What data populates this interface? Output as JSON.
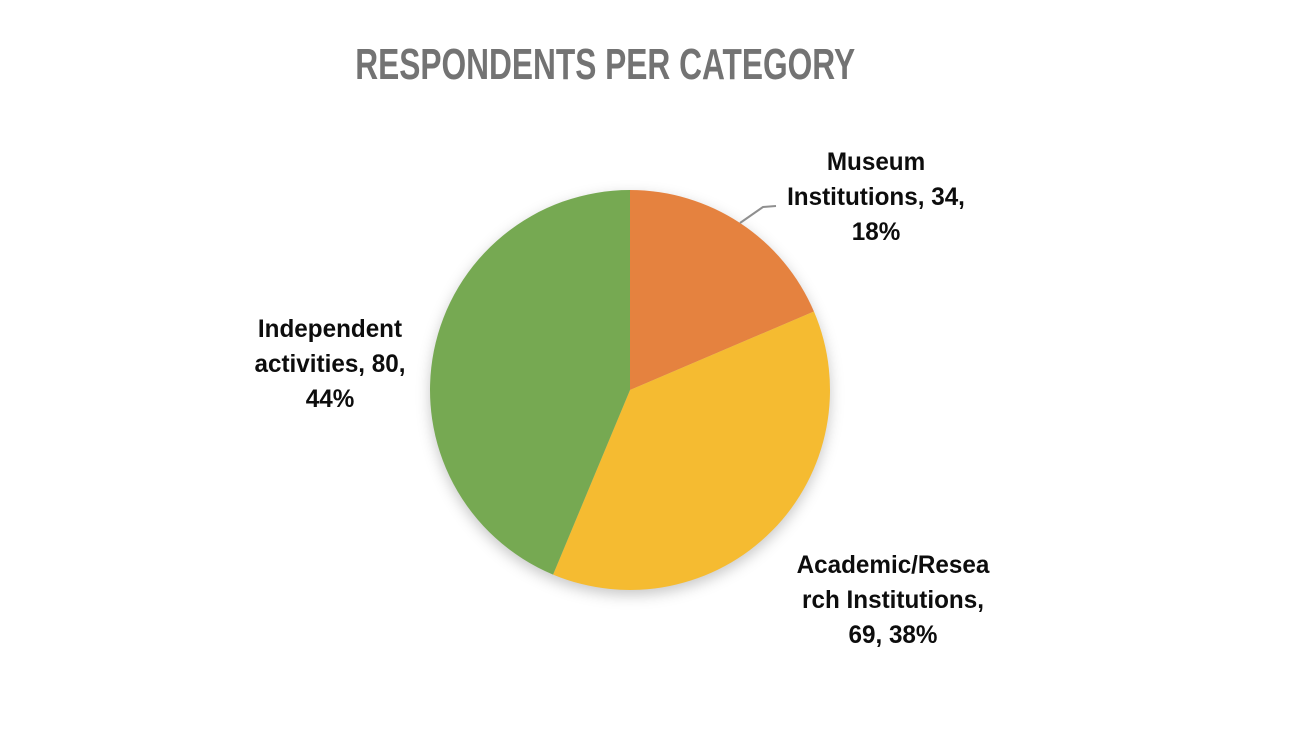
{
  "page": {
    "background_color": "#ffffff"
  },
  "chart_data": {
    "type": "pie",
    "title": "RESPONDENTS PER CATEGORY",
    "title_color": "#737373",
    "legend": "none",
    "start_angle_deg": 0,
    "direction": "clockwise",
    "total": 183,
    "label_format": "category, value, percent",
    "label_text_color": "#0d0d0d",
    "leader_line_color": "#8f8f8f",
    "series": [
      {
        "name": "Museum Institutions",
        "value": 34,
        "percent": "18%",
        "color": "#E5823F"
      },
      {
        "name": "Academic/Research Institutions",
        "value": 69,
        "percent": "38%",
        "color": "#F5BB31"
      },
      {
        "name": "Independent activities",
        "value": 80,
        "percent": "44%",
        "color": "#76A952"
      }
    ],
    "callout_labels": [
      {
        "target": "Museum Institutions",
        "leader_line": true,
        "lines": [
          "Museum",
          "Institutions, 34,",
          "18%"
        ]
      },
      {
        "target": "Academic/Research Institutions",
        "leader_line": false,
        "lines": [
          "Academic/Resea",
          "rch Institutions,",
          "69, 38%"
        ]
      },
      {
        "target": "Independent activities",
        "leader_line": false,
        "lines": [
          "Independent",
          "activities, 80,",
          "44%"
        ]
      }
    ]
  }
}
